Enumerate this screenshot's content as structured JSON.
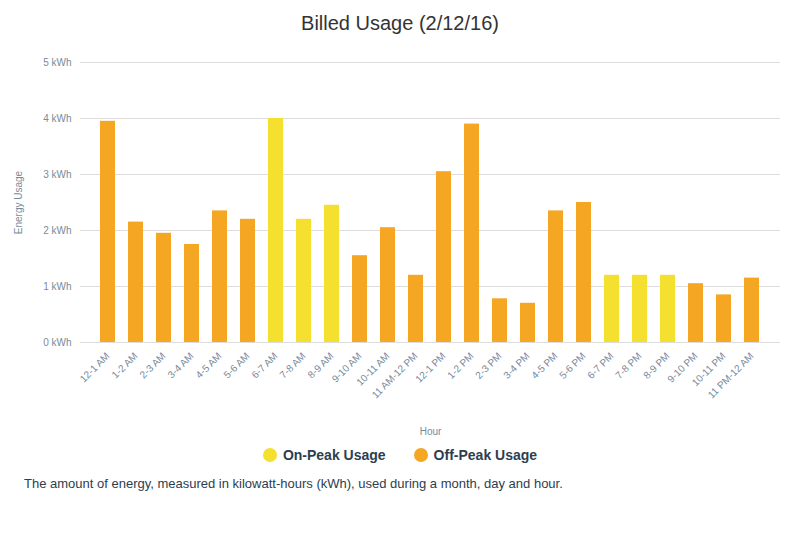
{
  "chart_data": {
    "type": "bar",
    "title": "Billed Usage (2/12/16)",
    "xlabel": "Hour",
    "ylabel": "Energy Usage",
    "subtitle": "The amount of energy, measured in kilowatt-hours (kWh), used during a month, day and hour.",
    "categories": [
      "12-1 AM",
      "1-2 AM",
      "2-3 AM",
      "3-4 AM",
      "4-5 AM",
      "5-6 AM",
      "6-7 AM",
      "7-8 AM",
      "8-9 AM",
      "9-10 AM",
      "10-11 AM",
      "11 AM-12 PM",
      "12-1 PM",
      "1-2 PM",
      "2-3 PM",
      "3-4 PM",
      "4-5 PM",
      "5-6 PM",
      "6-7 PM",
      "7-8 PM",
      "8-9 PM",
      "9-10 PM",
      "10-11 PM",
      "11 PM-12 AM"
    ],
    "values": [
      3.95,
      2.15,
      1.95,
      1.75,
      2.35,
      2.2,
      4.0,
      2.2,
      2.45,
      1.55,
      2.05,
      1.2,
      3.05,
      3.9,
      0.78,
      0.7,
      2.35,
      2.5,
      1.2,
      1.2,
      1.2,
      1.05,
      0.85,
      1.15
    ],
    "colors": [
      "#F5A623",
      "#F5A623",
      "#F5A623",
      "#F5A623",
      "#F5A623",
      "#F5A623",
      "#F5E030",
      "#F5E030",
      "#F5E030",
      "#F5A623",
      "#F5A623",
      "#F5A623",
      "#F5A623",
      "#F5A623",
      "#F5A623",
      "#F5A623",
      "#F5A623",
      "#F5A623",
      "#F5E030",
      "#F5E030",
      "#F5E030",
      "#F5A623",
      "#F5A623",
      "#F5A623"
    ],
    "ylim": [
      0,
      5
    ],
    "yticks": [
      {
        "value": 0,
        "label": "0 kWh"
      },
      {
        "value": 1,
        "label": "1 kWh"
      },
      {
        "value": 2,
        "label": "2 kWh"
      },
      {
        "value": 3,
        "label": "3 kWh"
      },
      {
        "value": 4,
        "label": "4 kWh"
      },
      {
        "value": 5,
        "label": "5 kWh"
      }
    ],
    "grid": true,
    "legend": "bottom",
    "legend_entries": [
      {
        "name": "On-Peak Usage",
        "color": "#F5E030"
      },
      {
        "name": "Off-Peak Usage",
        "color": "#F5A623"
      }
    ]
  }
}
